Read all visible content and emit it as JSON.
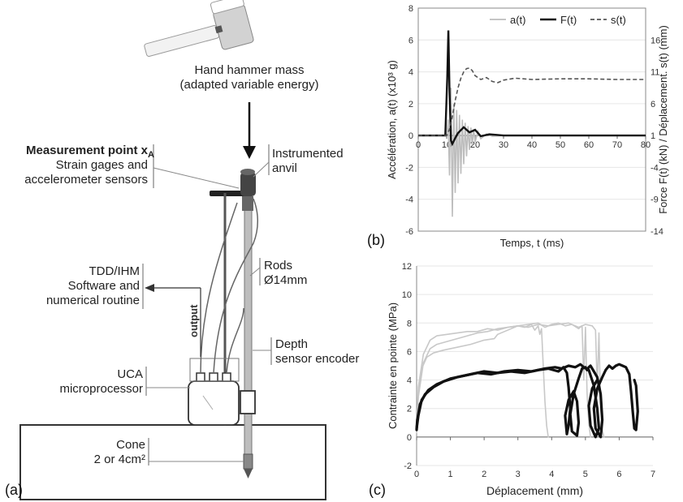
{
  "panel_a": {
    "tag": "(a)",
    "hammer_title": "Hand hammer mass",
    "hammer_sub": "(adapted variable energy)",
    "measurement_title_main": "Measurement point x",
    "measurement_title_sub": "A",
    "measurement_l2": "Strain gages and",
    "measurement_l3": "accelerometer sensors",
    "anvil_l1": "Instrumented",
    "anvil_l2": "anvil",
    "tdd_l1": "TDD/IHM",
    "tdd_l2": "Software and",
    "tdd_l3": "numerical routine",
    "output_label": "output",
    "rods_l1": "Rods",
    "rods_l2": "Ø14mm",
    "depth_l1": "Depth",
    "depth_l2": "sensor encoder",
    "uca_l1": "UCA",
    "uca_l2": "microprocessor",
    "cone_l1": "Cone",
    "cone_l2": "2 or 4cm²"
  },
  "chart_data": [
    {
      "tag": "(b)",
      "type": "line",
      "xlabel": "Temps, t (ms)",
      "ylabel_left": "Accélération, a(t) (x10³ g)",
      "ylabel_right": "Force F(t) (kN) / Déplacement. s(t) (mm)",
      "xlim": [
        0,
        80
      ],
      "xticks": [
        0,
        10,
        20,
        30,
        40,
        50,
        60,
        70,
        80
      ],
      "ylim_left": [
        -6,
        8
      ],
      "yticks_left": [
        -6,
        -4,
        -2,
        0,
        2,
        4,
        6,
        8
      ],
      "ylim_right": [
        -14,
        21
      ],
      "yticks_right": [
        -14,
        -9,
        -4,
        1,
        6,
        11,
        16
      ],
      "legend_position": "top-right",
      "grid": true,
      "series": [
        {
          "name": "a(t)",
          "axis": "left",
          "color": "#bdbdbd",
          "style": "solid",
          "x": [
            0,
            10,
            10.5,
            11,
            11.5,
            12,
            12.5,
            13,
            13.5,
            14,
            14.5,
            15,
            15.5,
            16,
            16.5,
            17,
            17.5,
            18,
            18.5,
            19,
            19.5,
            20,
            21,
            22,
            24,
            26,
            30,
            40,
            80
          ],
          "y": [
            0,
            0,
            1.0,
            -2.5,
            3.0,
            -5.1,
            2.0,
            -3.6,
            1.6,
            -3.0,
            1.3,
            -2.4,
            1.0,
            -1.8,
            0.8,
            -1.3,
            0.6,
            -0.9,
            0.5,
            -0.6,
            0.4,
            -0.4,
            0.25,
            -0.2,
            0.1,
            -0.05,
            0,
            0,
            0
          ]
        },
        {
          "name": "F(t)",
          "axis": "right",
          "color": "#111111",
          "style": "solid",
          "x": [
            0,
            9.5,
            10.2,
            10.6,
            11,
            11.5,
            12,
            13,
            14,
            16,
            18,
            20,
            22,
            25,
            30,
            40,
            80
          ],
          "y": [
            1,
            1,
            10,
            17.5,
            8,
            0.2,
            -0.3,
            0.6,
            1.4,
            2.3,
            1.5,
            1.9,
            0.9,
            1.2,
            1.0,
            1.0,
            1.0
          ]
        },
        {
          "name": "s(t)",
          "axis": "right",
          "color": "#555555",
          "style": "dashed",
          "x": [
            0,
            10,
            11,
            12,
            13,
            14,
            15,
            16,
            17,
            18,
            19,
            20,
            22,
            24,
            26,
            28,
            30,
            34,
            40,
            50,
            60,
            70,
            80
          ],
          "y": [
            1,
            1,
            2,
            4,
            6.5,
            8.5,
            10,
            11,
            11.5,
            11.6,
            11.2,
            10.4,
            9.8,
            10.1,
            9.5,
            9.3,
            9.7,
            10,
            9.8,
            9.9,
            9.9,
            9.8,
            9.8
          ]
        }
      ]
    },
    {
      "tag": "(c)",
      "type": "line",
      "xlabel": "Déplacement (mm)",
      "ylabel": "Contrainte en pointe (MPa)",
      "xlim": [
        0,
        7
      ],
      "xticks": [
        0,
        1,
        2,
        3,
        4,
        5,
        6,
        7
      ],
      "ylim": [
        -2,
        12
      ],
      "yticks": [
        -2,
        0,
        2,
        4,
        6,
        8,
        10,
        12
      ],
      "grid": true,
      "series": [
        {
          "axis": "left",
          "color": "#c8c8c8",
          "width": 1.6,
          "x": [
            0,
            0.05,
            0.15,
            0.3,
            0.5,
            0.8,
            1.2,
            1.6,
            2.0,
            2.3,
            2.4,
            2.6,
            2.8,
            3.0,
            3.2,
            3.4,
            3.5,
            3.6,
            3.65,
            3.7,
            3.75,
            3.8,
            3.85,
            3.9
          ],
          "y": [
            0.3,
            3.0,
            4.8,
            5.6,
            5.9,
            6.1,
            6.3,
            6.5,
            6.8,
            6.9,
            7.2,
            7.4,
            7.6,
            7.8,
            7.7,
            7.9,
            7.5,
            7.8,
            7.2,
            7.6,
            5.0,
            2.5,
            0.8,
            0
          ]
        },
        {
          "axis": "left",
          "color": "#c8c8c8",
          "width": 1.6,
          "x": [
            0,
            0.05,
            0.2,
            0.4,
            0.6,
            0.9,
            1.2,
            1.5,
            1.8,
            2.1,
            2.4,
            2.7,
            3.0,
            3.3,
            3.6,
            3.8,
            4.0,
            4.2,
            4.4,
            4.6,
            4.8,
            4.9,
            4.95,
            5.0,
            5.05,
            5.1,
            5.15
          ],
          "y": [
            0.5,
            3.5,
            5.8,
            6.8,
            7.1,
            7.2,
            7.3,
            7.4,
            7.4,
            7.6,
            7.5,
            7.7,
            7.8,
            7.9,
            8.0,
            7.7,
            7.9,
            8.0,
            7.8,
            7.9,
            7.6,
            7.8,
            4.0,
            7.7,
            3.0,
            1.0,
            0
          ]
        },
        {
          "axis": "left",
          "color": "#c8c8c8",
          "width": 1.6,
          "x": [
            0,
            0.05,
            0.2,
            0.4,
            0.6,
            0.9,
            1.2,
            1.5,
            1.8,
            2.1,
            2.4,
            2.7,
            3.0,
            3.3,
            3.6,
            3.9,
            4.2,
            4.5,
            4.8,
            5.0,
            5.2,
            5.3,
            5.35,
            5.4,
            5.45,
            5.5,
            5.55
          ],
          "y": [
            0.5,
            2.8,
            5.2,
            6.2,
            6.5,
            6.7,
            6.9,
            7.1,
            7.3,
            7.4,
            7.6,
            7.7,
            7.8,
            7.7,
            7.9,
            7.8,
            7.9,
            8.0,
            7.7,
            7.9,
            7.8,
            7.5,
            3.5,
            7.3,
            2.0,
            0.5,
            0
          ]
        },
        {
          "axis": "left",
          "color": "#111111",
          "width": 3.2,
          "x": [
            0,
            0.02,
            0.1,
            0.25,
            0.5,
            0.8,
            1.2,
            1.6,
            2.0,
            2.4,
            2.8,
            3.2,
            3.6,
            3.9,
            4.2,
            4.35,
            4.45,
            4.5,
            4.55,
            4.5,
            4.45,
            4.4,
            4.5,
            4.65,
            4.75,
            4.8,
            4.75,
            4.6,
            4.55,
            4.65,
            4.8,
            4.9,
            5.0,
            5.05,
            5.1,
            5.15,
            5.2,
            5.35,
            5.45,
            5.5,
            5.45,
            5.3,
            5.25,
            5.35,
            5.5,
            5.6,
            5.7,
            5.8,
            5.9,
            6.0,
            6.1,
            6.2,
            6.3,
            6.35,
            6.4,
            6.45,
            6.5,
            6.55,
            6.5,
            6.45
          ],
          "y": [
            0.5,
            1.2,
            2.3,
            3.0,
            3.5,
            3.9,
            4.2,
            4.4,
            4.6,
            4.5,
            4.6,
            4.5,
            4.7,
            4.8,
            4.6,
            4.9,
            4.5,
            3.5,
            2.0,
            0.8,
            0.2,
            1.5,
            2.6,
            3.2,
            2.5,
            1.0,
            0.1,
            0.4,
            1.6,
            3.0,
            4.1,
            4.8,
            4.9,
            4.7,
            4.9,
            5.0,
            4.8,
            4.2,
            3.0,
            1.2,
            0.0,
            0.6,
            2.0,
            3.4,
            4.2,
            4.7,
            5.0,
            4.8,
            5.0,
            5.1,
            5.0,
            4.9,
            4.4,
            3.2,
            1.8,
            0.6,
            0.5,
            1.8,
            3.6,
            4.0
          ]
        },
        {
          "axis": "left",
          "color": "#111111",
          "width": 3.2,
          "x": [
            0,
            0.05,
            0.15,
            0.35,
            0.6,
            1.0,
            1.4,
            1.8,
            2.2,
            2.6,
            3.0,
            3.4,
            3.8,
            4.1,
            4.3,
            4.5,
            4.7,
            4.85,
            4.95,
            5.1,
            5.25,
            5.35,
            5.4,
            5.3,
            5.15,
            5.1,
            5.2,
            5.35
          ],
          "y": [
            0.6,
            1.5,
            2.6,
            3.3,
            3.7,
            4.1,
            4.3,
            4.5,
            4.4,
            4.6,
            4.7,
            4.6,
            4.8,
            4.9,
            4.8,
            5.0,
            4.9,
            5.1,
            4.9,
            4.7,
            3.6,
            2.0,
            0.6,
            0.0,
            0.8,
            2.2,
            3.4,
            4.0
          ]
        }
      ]
    }
  ]
}
